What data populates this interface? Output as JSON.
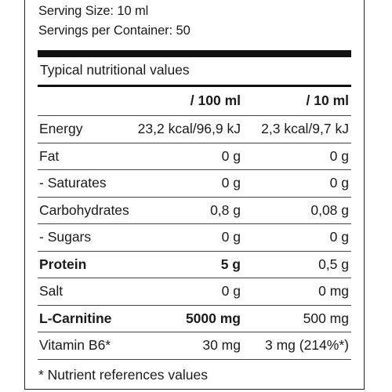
{
  "serving": {
    "size": "Serving Size: 10 ml",
    "per_container": "Servings per Container: 50"
  },
  "section_title": "Typical nutritional values",
  "columns": [
    "/ 100 ml",
    "/ 10 ml"
  ],
  "rows": [
    {
      "label": "Energy",
      "per100": "23,2 kcal/96,9 kJ",
      "per10": "2,3 kcal/9,7 kJ",
      "bold": false
    },
    {
      "label": "Fat",
      "per100": "0 g",
      "per10": "0 g",
      "bold": false
    },
    {
      "label": "- Saturates",
      "per100": "0 g",
      "per10": "0 g",
      "bold": false
    },
    {
      "label": "Carbohydrates",
      "per100": "0,8 g",
      "per10": "0,08 g",
      "bold": false
    },
    {
      "label": "- Sugars",
      "per100": "0 g",
      "per10": "0 g",
      "bold": false
    },
    {
      "label": "Protein",
      "per100": "5 g",
      "per10": "0,5 g",
      "bold": true
    },
    {
      "label": "Salt",
      "per100": "0 g",
      "per10": "0 mg",
      "bold": false
    },
    {
      "label": "L-Carnitine",
      "per100": "5000 mg",
      "per10": "500 mg",
      "bold": true
    },
    {
      "label": "Vitamin B6*",
      "per100": "30 mg",
      "per10": "3 mg (214%*)",
      "bold": false
    }
  ],
  "footnote": "* Nutrient references values"
}
